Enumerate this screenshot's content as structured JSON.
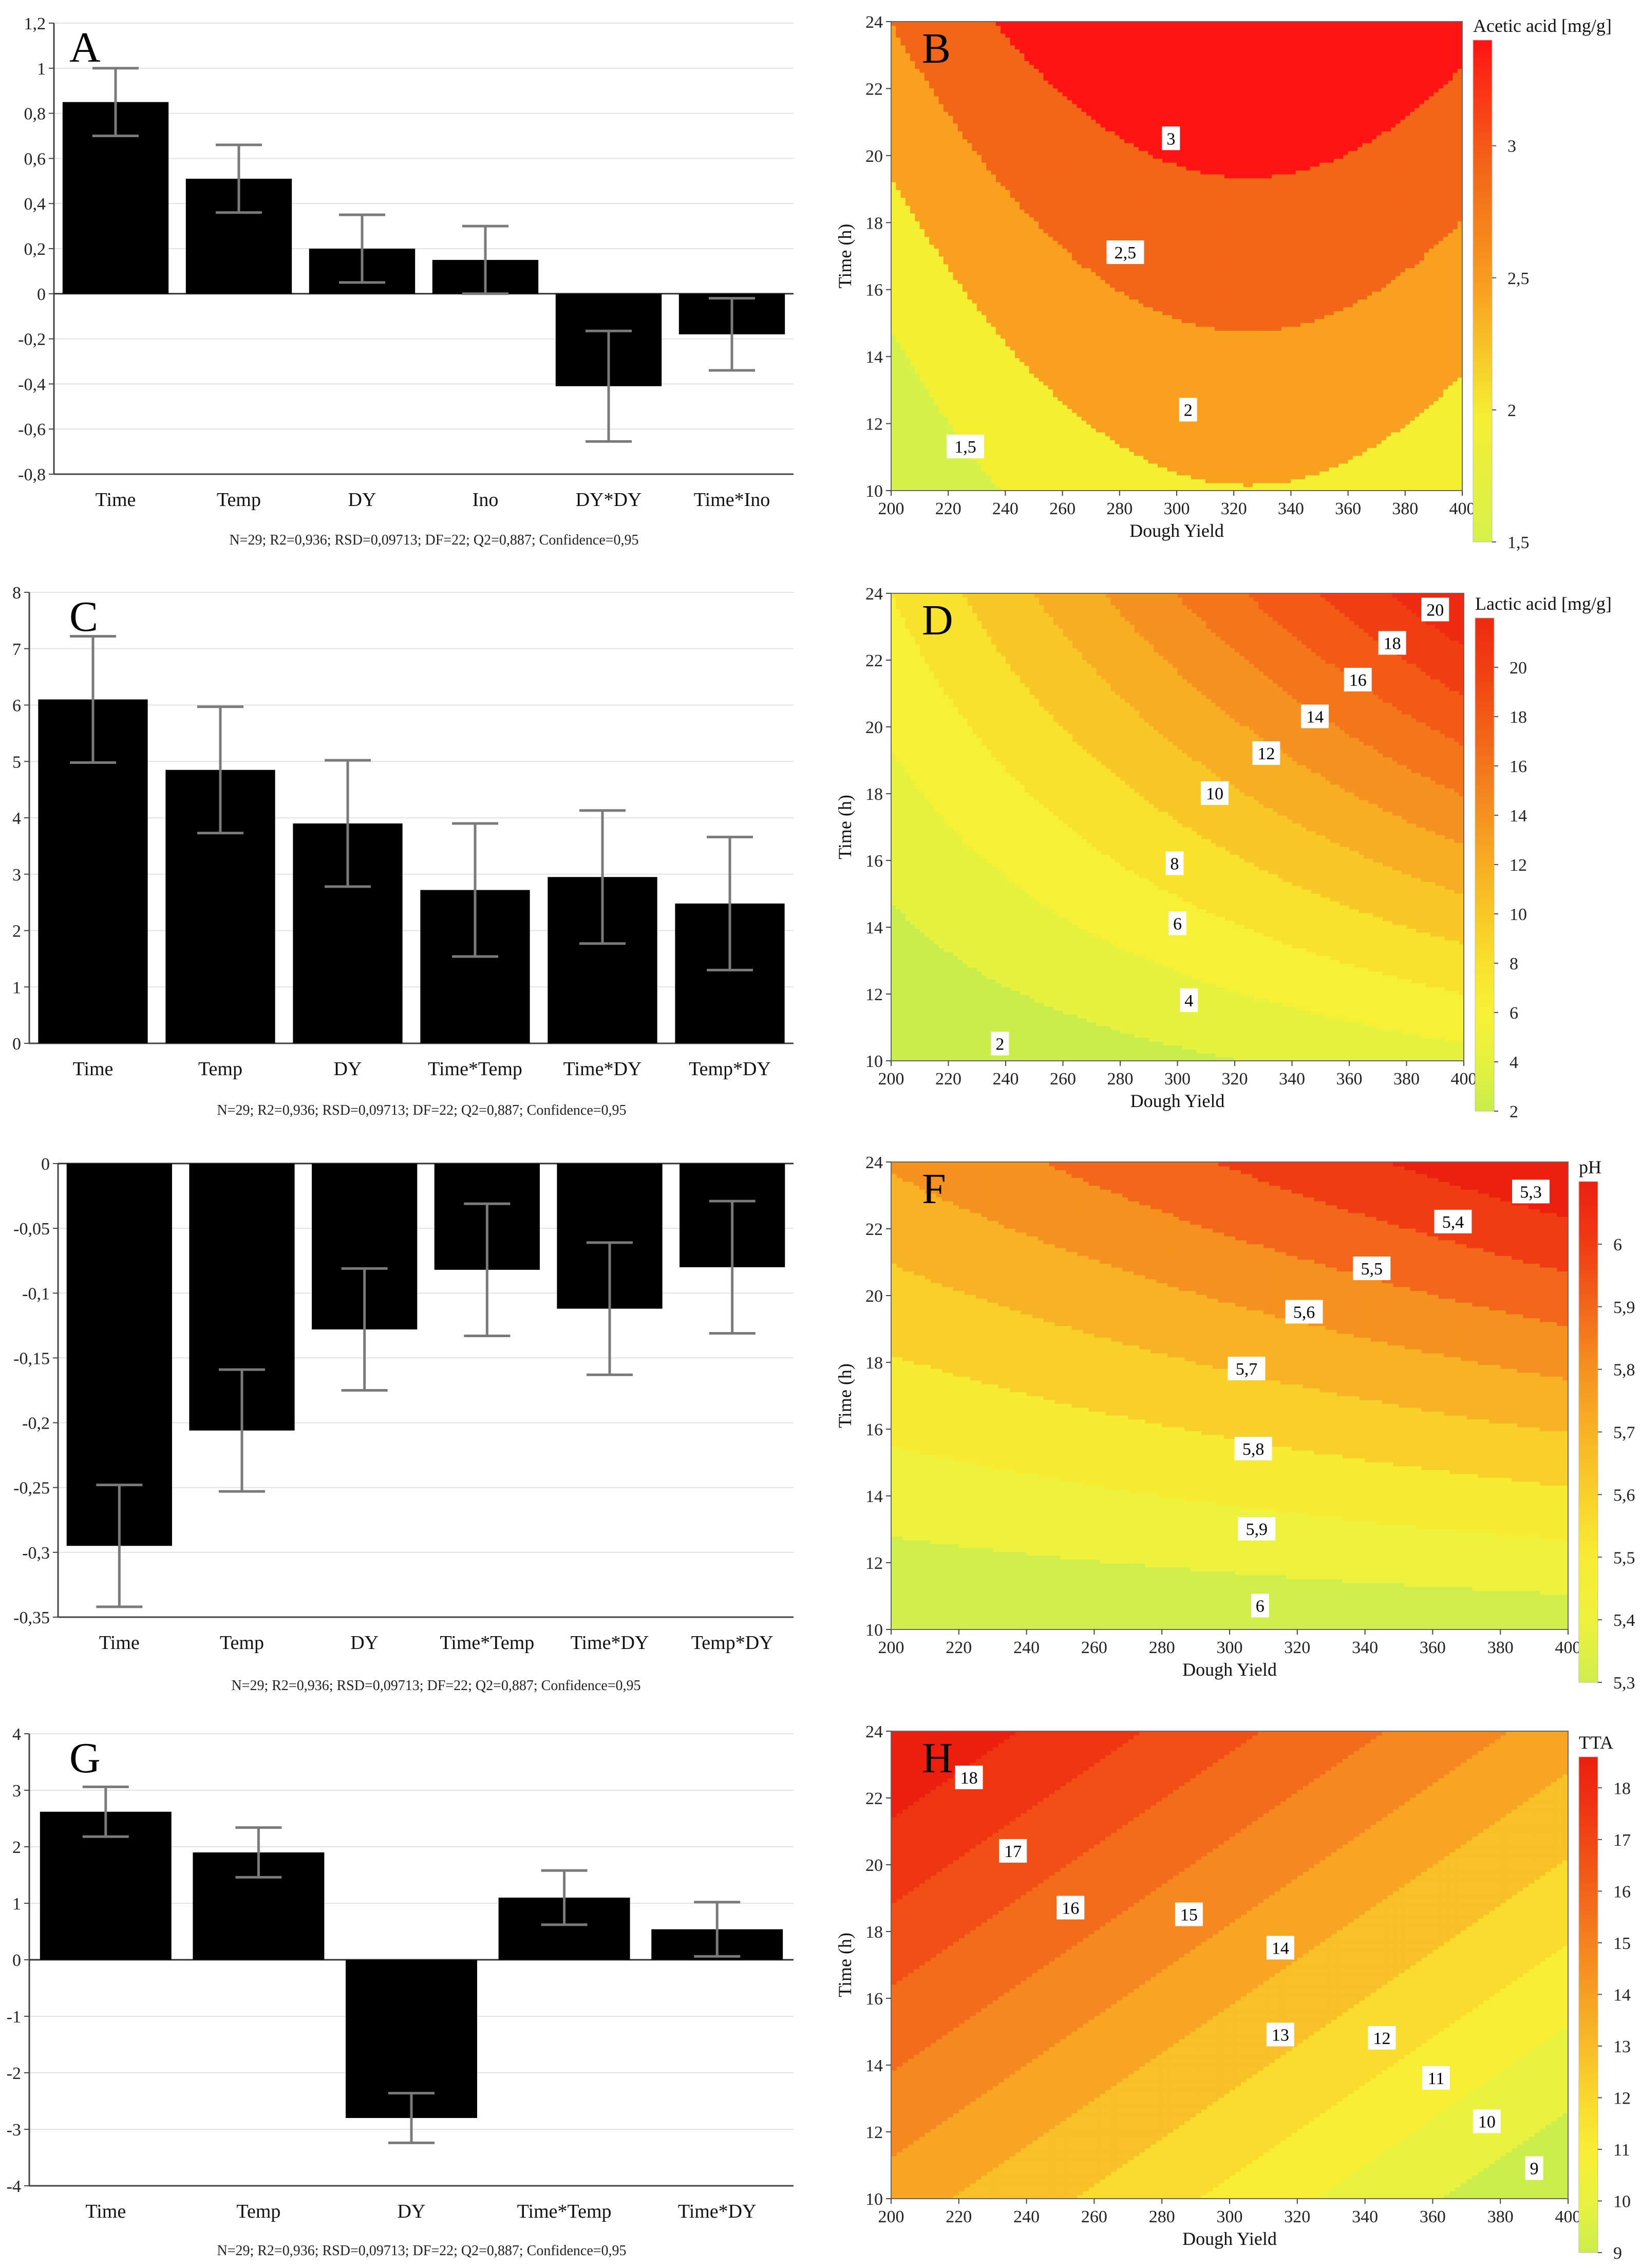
{
  "footnote": "N=29; R2=0,936; RSD=0,09713; DF=22; Q2=0,887; Confidence=0,95",
  "chart_data": [
    {
      "id": "A",
      "letter": "A",
      "type": "bar",
      "categories": [
        "Time",
        "Temp",
        "DY",
        "Ino",
        "DY*DY",
        "Time*Ino"
      ],
      "values": [
        0.85,
        0.51,
        0.2,
        0.15,
        -0.41,
        -0.18
      ],
      "errors": [
        0.15,
        0.15,
        0.15,
        0.15,
        0.245,
        0.16
      ],
      "ylim": [
        -0.8,
        1.2
      ],
      "yticks": [
        -0.8,
        -0.6,
        -0.4,
        -0.2,
        0,
        0.2,
        0.4,
        0.6,
        0.8,
        1,
        1.2
      ],
      "ytick_labels": [
        "-0,8",
        "-0,6",
        "-0,4",
        "-0,2",
        "0",
        "0,2",
        "0,4",
        "0,6",
        "0,8",
        "1",
        "1,2"
      ],
      "footnote": "N=29; R2=0,936; RSD=0,09713; DF=22; Q2=0,887; Confidence=0,95"
    },
    {
      "id": "B",
      "letter": "B",
      "type": "contour",
      "legend_title": "Acetic acid [mg/g]",
      "xlabel": "Dough Yield",
      "ylabel": "Time (h)",
      "xlim": [
        200,
        400
      ],
      "ylim": [
        10,
        24
      ],
      "xticks": [
        200,
        220,
        240,
        260,
        280,
        300,
        320,
        340,
        360,
        380,
        400
      ],
      "yticks": [
        10,
        12,
        14,
        16,
        18,
        20,
        22,
        24
      ],
      "colorbar_range": [
        1.5,
        3.4
      ],
      "colorbar_ticks": [
        1.5,
        2,
        2.5,
        3
      ],
      "colorbar_tick_labels": [
        "1,5",
        "2",
        "2,5",
        "3"
      ],
      "level_colors": [
        "#d6f24a",
        "#f5ef32",
        "#f9a11f",
        "#f36517",
        "#ff1414"
      ],
      "contour_labels": [
        {
          "text": "1,5",
          "x": 226,
          "y": 11.3
        },
        {
          "text": "2",
          "x": 304,
          "y": 12.4
        },
        {
          "text": "2,5",
          "x": 282,
          "y": 17.1
        },
        {
          "text": "3",
          "x": 298,
          "y": 20.5
        }
      ]
    },
    {
      "id": "C",
      "letter": "C",
      "type": "bar",
      "categories": [
        "Time",
        "Temp",
        "DY",
        "Time*Temp",
        "Time*DY",
        "Temp*DY"
      ],
      "values": [
        6.1,
        4.85,
        3.9,
        2.72,
        2.95,
        2.48
      ],
      "errors": [
        1.12,
        1.12,
        1.12,
        1.18,
        1.18,
        1.18
      ],
      "ylim": [
        0,
        8
      ],
      "yticks": [
        0,
        1,
        2,
        3,
        4,
        5,
        6,
        7,
        8
      ],
      "ytick_labels": [
        "0",
        "1",
        "2",
        "3",
        "4",
        "5",
        "6",
        "7",
        "8"
      ],
      "footnote": "N=29; R2=0,936; RSD=0,09713; DF=22; Q2=0,887; Confidence=0,95"
    },
    {
      "id": "D",
      "letter": "D",
      "type": "contour",
      "legend_title": "Lactic acid [mg/g]",
      "xlabel": "Dough Yield",
      "ylabel": "Time (h)",
      "xlim": [
        200,
        400
      ],
      "ylim": [
        10,
        24
      ],
      "xticks": [
        200,
        220,
        240,
        260,
        280,
        300,
        320,
        340,
        360,
        380,
        400
      ],
      "yticks": [
        10,
        12,
        14,
        16,
        18,
        20,
        22,
        24
      ],
      "colorbar_range": [
        2,
        22
      ],
      "colorbar_ticks": [
        2,
        4,
        6,
        8,
        10,
        12,
        14,
        16,
        18,
        20
      ],
      "colorbar_tick_labels": [
        "2",
        "4",
        "6",
        "8",
        "10",
        "12",
        "14",
        "16",
        "18",
        "20"
      ],
      "level_colors": [
        "#c9ee4c",
        "#e6f23e",
        "#f7f136",
        "#f9e22c",
        "#f8c826",
        "#f7ae22",
        "#f59220",
        "#f3761b",
        "#f25a16",
        "#f03e12",
        "#ee2a10"
      ],
      "contour_labels": [
        {
          "text": "2",
          "x": 238,
          "y": 10.5
        },
        {
          "text": "4",
          "x": 304,
          "y": 11.8
        },
        {
          "text": "6",
          "x": 300,
          "y": 14.1
        },
        {
          "text": "8",
          "x": 299,
          "y": 15.9
        },
        {
          "text": "10",
          "x": 313,
          "y": 18.0
        },
        {
          "text": "12",
          "x": 331,
          "y": 19.2
        },
        {
          "text": "14",
          "x": 348,
          "y": 20.3
        },
        {
          "text": "16",
          "x": 363,
          "y": 21.4
        },
        {
          "text": "18",
          "x": 375,
          "y": 22.5
        },
        {
          "text": "20",
          "x": 390,
          "y": 23.5
        }
      ]
    },
    {
      "id": "E",
      "letter": "E",
      "type": "bar",
      "categories": [
        "Time",
        "Temp",
        "DY",
        "Time*Temp",
        "Time*DY",
        "Temp*DY"
      ],
      "values": [
        -0.295,
        -0.206,
        -0.128,
        -0.082,
        -0.112,
        -0.08
      ],
      "errors": [
        0.047,
        0.047,
        0.047,
        0.051,
        0.051,
        0.051
      ],
      "ylim": [
        -0.35,
        0
      ],
      "yticks": [
        -0.35,
        -0.3,
        -0.25,
        -0.2,
        -0.15,
        -0.1,
        -0.05,
        0
      ],
      "ytick_labels": [
        "-0,35",
        "-0,3",
        "-0,25",
        "-0,2",
        "-0,15",
        "-0,1",
        "-0,05",
        "0"
      ],
      "footnote": "N=29; R2=0,936; RSD=0,09713; DF=22; Q2=0,887; Confidence=0,95"
    },
    {
      "id": "F",
      "letter": "F",
      "type": "contour",
      "legend_title": "pH",
      "xlabel": "Dough Yield",
      "ylabel": "Time (h)",
      "xlim": [
        200,
        400
      ],
      "ylim": [
        10,
        24
      ],
      "xticks": [
        200,
        220,
        240,
        260,
        280,
        300,
        320,
        340,
        360,
        380,
        400
      ],
      "yticks": [
        10,
        12,
        14,
        16,
        18,
        20,
        22,
        24
      ],
      "colorbar_range": [
        5.3,
        6.1
      ],
      "colorbar_ticks": [
        5.3,
        5.4,
        5.5,
        5.6,
        5.7,
        5.8,
        5.9,
        6
      ],
      "colorbar_tick_labels": [
        "5,3",
        "5,4",
        "5,5",
        "5,6",
        "5,7",
        "5,8",
        "5,9",
        "6"
      ],
      "level_colors": [
        "#d0ee4c",
        "#eef23c",
        "#f8ec33",
        "#f9d02a",
        "#f8b324",
        "#f5921f",
        "#f2671a",
        "#ef3c13",
        "#ec200f"
      ],
      "contour_labels": [
        {
          "text": "5,3",
          "x": 389,
          "y": 23.1
        },
        {
          "text": "5,4",
          "x": 366,
          "y": 22.2
        },
        {
          "text": "5,5",
          "x": 342,
          "y": 20.8
        },
        {
          "text": "5,6",
          "x": 322,
          "y": 19.5
        },
        {
          "text": "5,7",
          "x": 305,
          "y": 17.8
        },
        {
          "text": "5,8",
          "x": 307,
          "y": 15.4
        },
        {
          "text": "5,9",
          "x": 308,
          "y": 13.0
        },
        {
          "text": "6",
          "x": 309,
          "y": 10.7
        }
      ]
    },
    {
      "id": "G",
      "letter": "G",
      "type": "bar",
      "categories": [
        "Time",
        "Temp",
        "DY",
        "Time*Temp",
        "Time*DY"
      ],
      "values": [
        2.62,
        1.9,
        -2.8,
        1.1,
        0.54
      ],
      "errors": [
        0.44,
        0.44,
        0.44,
        0.48,
        0.48
      ],
      "ylim": [
        -4,
        4
      ],
      "yticks": [
        -4,
        -3,
        -2,
        -1,
        0,
        1,
        2,
        3,
        4
      ],
      "ytick_labels": [
        "-4",
        "-3",
        "-2",
        "-1",
        "0",
        "1",
        "2",
        "3",
        "4"
      ],
      "footnote": "N=29; R2=0,936; RSD=0,09713; DF=22; Q2=0,887; Confidence=0,95"
    },
    {
      "id": "H",
      "letter": "H",
      "type": "contour",
      "legend_title": "TTA",
      "xlabel": "Dough Yield",
      "ylabel": "Time (h)",
      "xlim": [
        200,
        400
      ],
      "ylim": [
        10,
        24
      ],
      "xticks": [
        200,
        220,
        240,
        260,
        280,
        300,
        320,
        340,
        360,
        380,
        400
      ],
      "yticks": [
        10,
        12,
        14,
        16,
        18,
        20,
        22,
        24
      ],
      "colorbar_range": [
        9,
        18.6
      ],
      "colorbar_ticks": [
        9,
        10,
        11,
        12,
        13,
        14,
        15,
        16,
        17,
        18
      ],
      "colorbar_tick_labels": [
        "9",
        "10",
        "11",
        "12",
        "13",
        "14",
        "15",
        "16",
        "17",
        "18"
      ],
      "level_colors": [
        "#cbee4c",
        "#e9f23e",
        "#f8ef35",
        "#f9dc2d",
        "#f8c127",
        "#f7a523",
        "#f5891f",
        "#f36c1b",
        "#f14f16",
        "#ef3412",
        "#ec1f0f"
      ],
      "contour_labels": [
        {
          "text": "18",
          "x": 223,
          "y": 22.6
        },
        {
          "text": "17",
          "x": 236,
          "y": 20.4
        },
        {
          "text": "16",
          "x": 253,
          "y": 18.7
        },
        {
          "text": "15",
          "x": 288,
          "y": 18.5
        },
        {
          "text": "14",
          "x": 315,
          "y": 17.5
        },
        {
          "text": "13",
          "x": 315,
          "y": 14.9
        },
        {
          "text": "12",
          "x": 345,
          "y": 14.8
        },
        {
          "text": "11",
          "x": 361,
          "y": 13.6
        },
        {
          "text": "10",
          "x": 376,
          "y": 12.3
        },
        {
          "text": "9",
          "x": 390,
          "y": 10.9
        }
      ]
    }
  ]
}
